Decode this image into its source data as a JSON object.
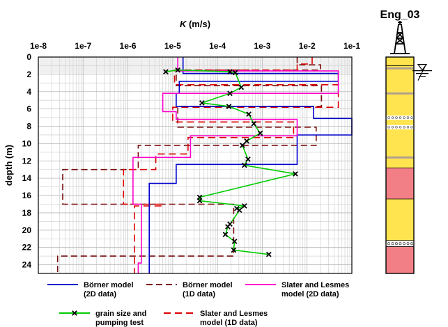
{
  "chart_data": {
    "type": "line",
    "x_axis": {
      "label_italic": "K",
      "label_unit": " (m/s)",
      "scale": "log",
      "range": [
        1e-08,
        0.1
      ],
      "tick_labels": [
        "1e-8",
        "1e-7",
        "1e-6",
        "1e-5",
        "1e-4",
        "1e-3",
        "1e-2",
        "1e-1"
      ]
    },
    "y_axis": {
      "label": "depth (m)",
      "range": [
        0,
        25
      ],
      "inverted": true,
      "tick_labels": [
        "0",
        "2",
        "4",
        "6",
        "8",
        "10",
        "12",
        "14",
        "16",
        "18",
        "20",
        "22",
        "24"
      ]
    },
    "grid": true,
    "series": [
      {
        "name": "Börner model\n(2D data)",
        "color": "#0000cc",
        "dash": "solid",
        "marker": "none",
        "steps": [
          [
            1.9,
            1.7e-05
          ],
          [
            2.8,
            0.05
          ],
          [
            4.2,
            1.4e-05
          ],
          [
            5.7,
            1.2e-05
          ],
          [
            7.1,
            0.014
          ],
          [
            9.0,
            0.1
          ],
          [
            12.4,
            0.006
          ],
          [
            14.6,
            1.2e-05
          ],
          [
            25,
            3e-06
          ]
        ],
        "note": "x in m/s, y = bottom depth of layer"
      },
      {
        "name": "Börner model\n(1D data)",
        "color": "#7a0c0c",
        "dash": "dashed",
        "marker": "none",
        "steps": [
          [
            0.9,
            0.006
          ],
          [
            1.5,
            0.02
          ],
          [
            3.3,
            1.2e-05
          ],
          [
            5.7,
            0.021
          ],
          [
            8.1,
            1.3e-05
          ],
          [
            10.2,
            0.016
          ],
          [
            13.0,
            1.7e-06
          ],
          [
            17.0,
            3.5e-08
          ],
          [
            23.0,
            0.00023
          ],
          [
            25,
            2.7e-08
          ]
        ]
      },
      {
        "name": "Slater and Lesmes\nmodel (2D data)",
        "color": "#ff00cc",
        "dash": "solid",
        "marker": "none",
        "steps": [
          [
            1.6,
            1.3e-05
          ],
          [
            4.2,
            0.05
          ],
          [
            6.3,
            6e-06
          ],
          [
            7.2,
            1.2e-05
          ],
          [
            9.1,
            0.006
          ],
          [
            11.6,
            2.5e-05
          ],
          [
            17.0,
            1.3e-06
          ],
          [
            23.8,
            2e-06
          ],
          [
            25,
            1.7e-06
          ]
        ]
      },
      {
        "name": "grain size and\npumping test",
        "color": "#00cc00",
        "dash": "solid",
        "marker": "x",
        "points": [
          [
            1.7,
            7e-06
          ],
          [
            1.5,
            1.3e-05
          ],
          [
            1.7,
            0.00019
          ],
          [
            1.8,
            0.00025
          ],
          [
            3.5,
            0.00034
          ],
          [
            4.2,
            0.00019
          ],
          [
            5.3,
            4.5e-05
          ],
          [
            5.7,
            0.00018
          ],
          [
            6.6,
            0.0005
          ],
          [
            7.7,
            0.00065
          ],
          [
            8.8,
            0.0009
          ],
          [
            9.7,
            0.00045
          ],
          [
            10.2,
            0.00036
          ],
          [
            11.8,
            0.00048
          ],
          [
            12.5,
            0.0004
          ],
          [
            13.5,
            0.0055
          ],
          [
            16.2,
            4e-05
          ],
          [
            16.6,
            4e-05
          ],
          [
            17.2,
            0.0004
          ],
          [
            17.5,
            0.00027
          ],
          [
            17.7,
            0.00031
          ],
          [
            19.3,
            0.00019
          ],
          [
            19.6,
            0.00017
          ],
          [
            20.5,
            0.00015
          ],
          [
            21.3,
            0.00024
          ],
          [
            22.3,
            0.00023
          ],
          [
            22.8,
            0.0014
          ]
        ]
      },
      {
        "name": "Slater and Lesmes\nmodel (1D data)",
        "color": "#dd0000",
        "dash": "dashed",
        "marker": "none",
        "steps": [
          [
            0.8,
            0.013
          ],
          [
            1.5,
            0.006
          ],
          [
            3.2,
            1.1e-05
          ],
          [
            5.8,
            0.05
          ],
          [
            7.5,
            1e-05
          ],
          [
            9.3,
            0.005
          ],
          [
            11.2,
            2.2e-05
          ],
          [
            13.0,
            4.2e-06
          ],
          [
            17.0,
            8e-07
          ],
          [
            17.2,
            6e-06
          ],
          [
            25,
            1.4e-06
          ]
        ]
      }
    ],
    "legend": {
      "placement": "bottom"
    }
  },
  "well_log": {
    "title": "Eng_03",
    "water_table_depth": 1.9,
    "layers": [
      {
        "from": 0,
        "to": 1.0,
        "type": "sand-gravel"
      },
      {
        "from": 1.0,
        "to": 12.8,
        "type": "sand-gravel"
      },
      {
        "from": 12.8,
        "to": 16.4,
        "type": "clay"
      },
      {
        "from": 16.4,
        "to": 21.2,
        "type": "sand-gravel"
      },
      {
        "from": 21.2,
        "to": 21.9,
        "type": "gravel"
      },
      {
        "from": 21.9,
        "to": 25,
        "type": "clay"
      }
    ],
    "thin_bands": [
      {
        "depth": 1.3,
        "kind": "silt"
      },
      {
        "depth": 4.2,
        "kind": "silt"
      },
      {
        "depth": 7.0,
        "kind": "gravel"
      },
      {
        "depth": 8.1,
        "kind": "gravel"
      },
      {
        "depth": 11.6,
        "kind": "silt"
      }
    ],
    "colors": {
      "sand-gravel": "#ffe34f",
      "clay": "#f27f86",
      "gravel": "#ffffff",
      "silt": "#b0a090"
    }
  }
}
